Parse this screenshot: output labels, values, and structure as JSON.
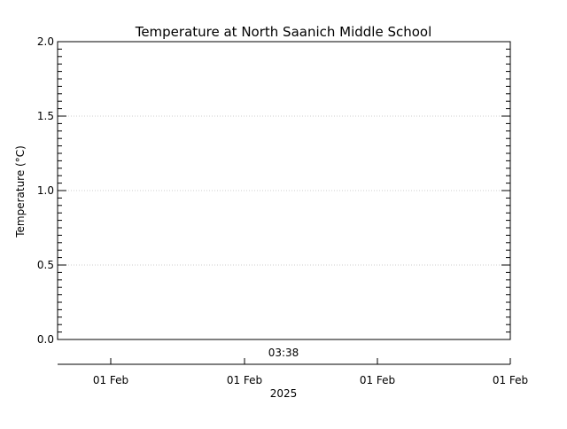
{
  "chart_data": {
    "type": "line",
    "title": "Temperature at North Saanich Middle School",
    "xlabel": "",
    "ylabel": "Temperature (°C)",
    "ylim": [
      0.0,
      2.0
    ],
    "y_ticks": [
      "0.0",
      "0.5",
      "1.0",
      "1.5",
      "2.0"
    ],
    "y_minor_per_major": 10,
    "grid": true,
    "grid_style": "dotted",
    "time_annotation": "03:38",
    "x_tick_labels": [
      "01 Feb",
      "01 Feb",
      "01 Feb",
      "01 Feb"
    ],
    "x_year_label": "2025",
    "series": [],
    "colors": {
      "axis": "#000000",
      "grid": "#cccccc",
      "background": "#ffffff"
    }
  }
}
